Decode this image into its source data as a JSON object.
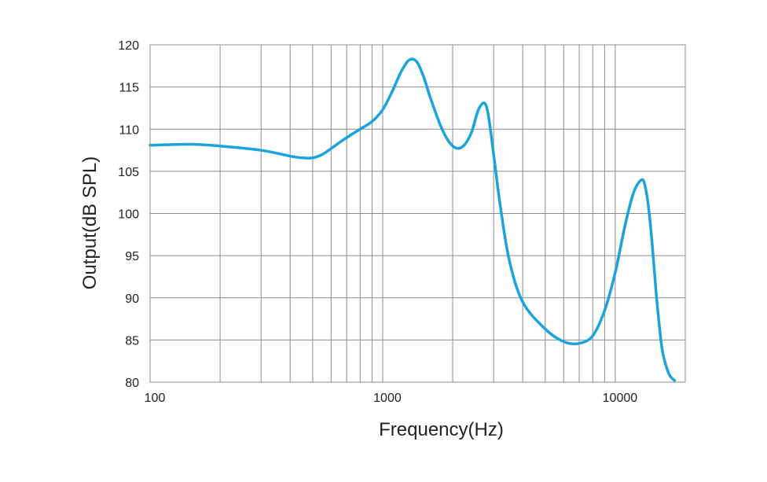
{
  "chart_data": {
    "type": "line",
    "title": "",
    "xlabel": "Frequency(Hz)",
    "ylabel": "Output(dB SPL)",
    "x_scale": "log",
    "xlim": [
      100,
      20000
    ],
    "ylim": [
      80,
      120
    ],
    "grid": true,
    "y_ticks": [
      80,
      85,
      90,
      95,
      100,
      105,
      110,
      115,
      120
    ],
    "x_tick_labels": [
      {
        "value": 100,
        "label": "100"
      },
      {
        "value": 1000,
        "label": "1000"
      },
      {
        "value": 10000,
        "label": "10000"
      }
    ],
    "line_color": "#1aa3dc",
    "grid_color": "#8c8c8c",
    "series": [
      {
        "name": "",
        "x": [
          100,
          150,
          200,
          300,
          400,
          450,
          500,
          550,
          600,
          700,
          800,
          900,
          1000,
          1100,
          1200,
          1300,
          1400,
          1500,
          1600,
          1800,
          2000,
          2200,
          2400,
          2600,
          2800,
          3000,
          3200,
          3500,
          4000,
          5000,
          6000,
          7000,
          8000,
          9000,
          10000,
          11000,
          12000,
          13000,
          13500,
          14000,
          14500,
          15000,
          15500,
          16000,
          17000,
          18000
        ],
        "y": [
          108.1,
          108.2,
          108.0,
          107.5,
          106.8,
          106.6,
          106.6,
          107.0,
          107.7,
          109.0,
          110.0,
          110.9,
          112.3,
          114.5,
          116.8,
          118.2,
          118.0,
          116.2,
          113.8,
          110.0,
          108.0,
          107.9,
          109.5,
          112.5,
          112.6,
          107.0,
          101.0,
          94.5,
          89.5,
          86.3,
          84.8,
          84.6,
          85.5,
          88.5,
          93.0,
          98.5,
          102.5,
          104.0,
          103.0,
          100.0,
          95.5,
          90.5,
          86.5,
          83.5,
          81.0,
          80.2
        ]
      }
    ]
  }
}
